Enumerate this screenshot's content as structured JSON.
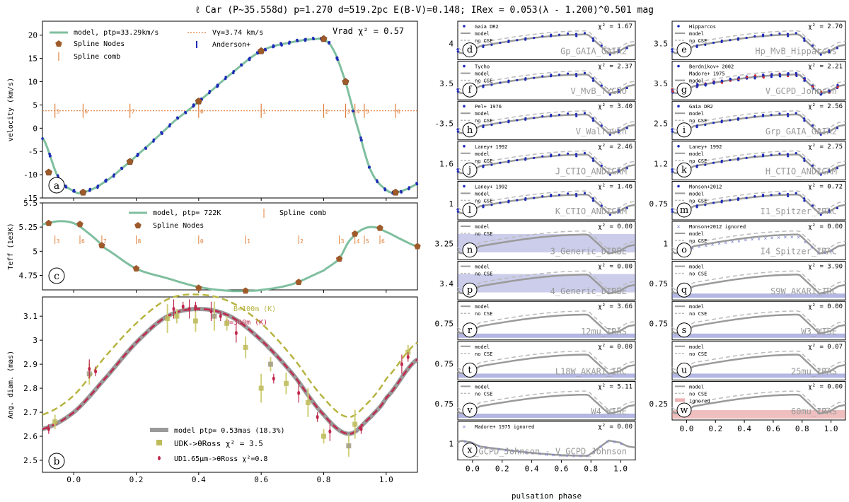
{
  "figure_title": "ℓ Car (P~35.558d) p=1.270 d=519.2pc E(B-V)=0.148; IRex = 0.053(λ - 1.200)^0.501 mag",
  "colors": {
    "model": "#7fbf9f",
    "node": "#9e5a2a",
    "comb": "#e07f3a",
    "data": "#1f2bb8",
    "dark": "#000000",
    "diamK": "#b7b441",
    "diamH": "#c0284c",
    "gray": "#9a9a9a",
    "cse": "#6a6fc4",
    "red": "#e08080"
  },
  "chart_data": [
    {
      "id": "a",
      "type": "line",
      "ylabel": "velocity (km/s)",
      "ylim": [
        -15,
        23
      ],
      "yticks": [
        -15,
        -10,
        -5,
        0,
        5,
        10,
        15,
        20
      ],
      "xlim": [
        -0.1,
        1.1
      ],
      "legend": {
        "model": "model, ptp=33.29km/s",
        "vgamma": "Vγ=3.74 km/s",
        "nodes": "Spline Nodes",
        "data": "Anderson+",
        "comb": "Spline comb"
      },
      "stat": "Vrad χ² = 0.57",
      "gamma": 3.74,
      "nodes": [
        [
          -0.08,
          -9.5
        ],
        [
          0.03,
          -13.8
        ],
        [
          0.18,
          -7.2
        ],
        [
          0.4,
          5.8
        ],
        [
          0.6,
          16.6
        ],
        [
          0.8,
          19.2
        ],
        [
          0.87,
          10.0
        ],
        [
          1.03,
          -13.8
        ]
      ],
      "comb": [
        [
          -0.06,
          "5"
        ],
        [
          0.03,
          "6"
        ],
        [
          0.18,
          "7"
        ],
        [
          0.4,
          "0"
        ],
        [
          0.6,
          "1"
        ],
        [
          0.8,
          "2"
        ],
        [
          0.87,
          "3"
        ],
        [
          0.9,
          "4"
        ],
        [
          0.93,
          "5"
        ],
        [
          1.03,
          "6"
        ]
      ],
      "series": [
        {
          "name": "model",
          "x": [
            -0.1,
            -0.05,
            0.0,
            0.03,
            0.1,
            0.18,
            0.25,
            0.32,
            0.4,
            0.5,
            0.6,
            0.7,
            0.78,
            0.8,
            0.83,
            0.87,
            0.9,
            0.95,
            1.0,
            1.03,
            1.07,
            1.1
          ],
          "y": [
            -2.0,
            -10.5,
            -13.5,
            -13.8,
            -11.5,
            -7.2,
            -3.0,
            1.4,
            5.8,
            11.5,
            16.6,
            18.5,
            19.2,
            19.0,
            17.0,
            10.0,
            2.0,
            -9.0,
            -13.2,
            -13.8,
            -13.0,
            -12.0
          ]
        }
      ]
    },
    {
      "id": "c",
      "type": "line",
      "ylabel": "Teff (1e3K)",
      "ylim": [
        4.6,
        5.5
      ],
      "yticks": [
        4.75,
        5.0,
        5.25,
        5.5
      ],
      "xlim": [
        -0.1,
        1.1
      ],
      "legend": {
        "model": "model, ptp= 722K",
        "nodes": "Spline Nodes",
        "comb": "Spline comb"
      },
      "nodes": [
        [
          -0.08,
          5.29
        ],
        [
          0.02,
          5.28
        ],
        [
          0.09,
          5.06
        ],
        [
          0.2,
          4.82
        ],
        [
          0.4,
          4.62
        ],
        [
          0.55,
          4.59
        ],
        [
          0.72,
          4.68
        ],
        [
          0.85,
          4.92
        ],
        [
          0.9,
          5.18
        ],
        [
          0.98,
          5.24
        ],
        [
          1.1,
          5.05
        ]
      ],
      "comb": [
        [
          -0.06,
          "3"
        ],
        [
          0.02,
          "6"
        ],
        [
          0.09,
          "7"
        ],
        [
          0.2,
          "8"
        ],
        [
          0.4,
          "0"
        ],
        [
          0.55,
          "1"
        ],
        [
          0.72,
          "2"
        ],
        [
          0.85,
          "3"
        ],
        [
          0.9,
          "4"
        ],
        [
          0.93,
          "5"
        ],
        [
          0.98,
          "6"
        ]
      ],
      "series": [
        {
          "name": "model",
          "x": [
            -0.1,
            -0.05,
            0.0,
            0.05,
            0.1,
            0.2,
            0.3,
            0.4,
            0.5,
            0.55,
            0.6,
            0.7,
            0.8,
            0.85,
            0.88,
            0.92,
            0.96,
            1.0,
            1.05,
            1.1
          ],
          "y": [
            5.28,
            5.31,
            5.29,
            5.18,
            5.03,
            4.82,
            4.72,
            4.63,
            4.59,
            4.59,
            4.6,
            4.66,
            4.8,
            4.92,
            5.1,
            5.22,
            5.25,
            5.2,
            5.12,
            5.05
          ]
        }
      ]
    },
    {
      "id": "b",
      "type": "line",
      "xlabel": "",
      "ylabel": "Ang. diam. (mas)",
      "ylim": [
        2.45,
        3.18
      ],
      "yticks": [
        2.5,
        2.6,
        2.7,
        2.8,
        2.9,
        3.0,
        3.1
      ],
      "xticks": [
        0.0,
        0.2,
        0.4,
        0.6,
        0.8,
        1.0
      ],
      "xlim": [
        -0.1,
        1.1
      ],
      "legend": {
        "model": "model ptp= 0.53mas (18.3%)",
        "udk": "UDK->θRoss χ² = 3.5",
        "udh": "UD1.65μm->θRoss χ²=0.8"
      },
      "annot": {
        "b100": "B=100m (K)",
        "b300": "B=300m (K)"
      },
      "model": {
        "x": [
          -0.1,
          0.0,
          0.1,
          0.2,
          0.3,
          0.4,
          0.5,
          0.6,
          0.7,
          0.8,
          0.88,
          0.95,
          1.0,
          1.1
        ],
        "y": [
          2.63,
          2.7,
          2.84,
          2.99,
          3.1,
          3.13,
          3.1,
          3.0,
          2.86,
          2.69,
          2.61,
          2.68,
          2.76,
          2.92
        ]
      },
      "b100": {
        "x": [
          -0.1,
          0.0,
          0.1,
          0.2,
          0.3,
          0.4,
          0.5,
          0.6,
          0.7,
          0.8,
          0.88,
          0.95,
          1.0,
          1.1
        ],
        "y": [
          2.69,
          2.77,
          2.93,
          3.07,
          3.17,
          3.19,
          3.16,
          3.07,
          2.93,
          2.76,
          2.68,
          2.75,
          2.84,
          2.99
        ]
      },
      "udk_points": [
        [
          -0.06,
          2.66
        ],
        [
          0.05,
          2.86
        ],
        [
          0.3,
          3.09
        ],
        [
          0.33,
          3.1
        ],
        [
          0.39,
          3.08
        ],
        [
          0.45,
          3.1
        ],
        [
          0.49,
          3.07
        ],
        [
          0.55,
          2.97
        ],
        [
          0.6,
          2.8
        ],
        [
          0.63,
          2.9
        ],
        [
          0.68,
          2.82
        ],
        [
          0.75,
          2.74
        ],
        [
          0.8,
          2.6
        ],
        [
          0.88,
          2.56
        ],
        [
          0.9,
          2.65
        ],
        [
          1.07,
          2.95
        ]
      ],
      "udh_points": [
        [
          -0.08,
          2.63
        ],
        [
          0.05,
          2.88
        ],
        [
          0.07,
          2.87
        ],
        [
          0.32,
          3.13
        ],
        [
          0.35,
          3.14
        ],
        [
          0.37,
          3.13
        ],
        [
          0.39,
          3.14
        ],
        [
          0.44,
          3.12
        ],
        [
          0.47,
          3.1
        ],
        [
          0.52,
          3.03
        ],
        [
          0.64,
          2.84
        ],
        [
          0.72,
          2.78
        ],
        [
          0.78,
          2.68
        ],
        [
          0.82,
          2.62
        ],
        [
          0.92,
          2.63
        ],
        [
          1.05,
          2.9
        ],
        [
          1.07,
          2.93
        ]
      ]
    }
  ],
  "small_panels": [
    {
      "id": "d",
      "col": 0,
      "row": 0,
      "band": "Gp_GAIA_GAIA2",
      "chi": "χ² = 1.67",
      "legend": [
        "Gaia DR2",
        "model",
        "no CSE"
      ],
      "ytick": "4",
      "cse": false,
      "dots": "blue"
    },
    {
      "id": "e",
      "col": 1,
      "row": 0,
      "band": "Hp_MvB_Hipparcos",
      "chi": "χ² = 2.70",
      "legend": [
        "Hipparcos",
        "model",
        "no CSE"
      ],
      "ytick": "3.5",
      "cse": false,
      "dots": "blue"
    },
    {
      "id": "f",
      "col": 0,
      "row": 1,
      "band": "V_MvB_TYCHO",
      "chi": "χ² = 2.37",
      "legend": [
        "Tycho",
        "model",
        "no CSE"
      ],
      "ytick": "3.5",
      "cse": false,
      "dots": "blue"
    },
    {
      "id": "g",
      "col": 1,
      "row": 1,
      "band": "V_GCPD_Johnson",
      "chi": "χ² = 2.21",
      "legend": [
        "Berdnikov+ 2002",
        "Madore+ 1975",
        "model"
      ],
      "ytick": "3.5",
      "cse": false,
      "dots": "dense"
    },
    {
      "id": "h",
      "col": 0,
      "row": 2,
      "band": "V_Walraven",
      "chi": "χ² = 3.40",
      "legend": [
        "Pel+ 1976",
        "model",
        "no CSE"
      ],
      "ytick": "-3.5",
      "cse": false,
      "dots": "blue"
    },
    {
      "id": "i",
      "col": 1,
      "row": 2,
      "band": "Grp_GAIA_GAIA2",
      "chi": "χ² = 2.56",
      "legend": [
        "Gaia DR2",
        "model",
        "no CSE"
      ],
      "ytick": "2.5",
      "cse": false,
      "dots": "blue"
    },
    {
      "id": "j",
      "col": 0,
      "row": 3,
      "band": "J_CTIO_ANDICAM",
      "chi": "χ² = 2.46",
      "legend": [
        "Laney+ 1992",
        "model",
        "no CSE"
      ],
      "ytick": "1.6",
      "cse": false,
      "dots": "blue"
    },
    {
      "id": "k",
      "col": 1,
      "row": 3,
      "band": "H_CTIO_ANDICAM",
      "chi": "χ² = 2.75",
      "legend": [
        "Laney+ 1992",
        "model",
        "no CSE"
      ],
      "ytick": "1.2",
      "cse": false,
      "dots": "blue"
    },
    {
      "id": "l",
      "col": 0,
      "row": 4,
      "band": "K_CTIO_ANDICAM",
      "chi": "χ² = 1.46",
      "legend": [
        "Laney+ 1992",
        "model",
        "no CSE"
      ],
      "ytick": "1",
      "cse": false,
      "dots": "blue"
    },
    {
      "id": "m",
      "col": 1,
      "row": 4,
      "band": "I1_Spitzer_IRAC",
      "chi": "χ² = 0.72",
      "legend": [
        "Monson+2012",
        "model",
        "no CSE"
      ],
      "ytick": "0.75",
      "cse": false,
      "dots": "blue"
    },
    {
      "id": "n",
      "col": 0,
      "row": 5,
      "band": "3_Generic_DIRBE",
      "chi": "χ² = 0.00",
      "legend": [
        "model",
        "no CSE"
      ],
      "ytick": "3.25",
      "cse": true,
      "dots": "none"
    },
    {
      "id": "o",
      "col": 1,
      "row": 5,
      "band": "I4_Spitzer_IRAC",
      "chi": "χ² = 0.00",
      "legend": [
        "Monson+2012 ignored",
        "model",
        "no CSE"
      ],
      "ytick": "1",
      "cse": false,
      "dots": "cross"
    },
    {
      "id": "p",
      "col": 0,
      "row": 6,
      "band": "4_Generic_DIRBE",
      "chi": "χ² = 0.00",
      "legend": [
        "model",
        "no CSE"
      ],
      "ytick": "3.4",
      "cse": true,
      "dots": "none"
    },
    {
      "id": "q",
      "col": 1,
      "row": 6,
      "band": "S9W_AKARI_IRC",
      "chi": "χ² = 3.90",
      "legend": [
        "model",
        "no CSE"
      ],
      "ytick": "0.75",
      "cse": false,
      "dots": "none",
      "thinband": true
    },
    {
      "id": "r",
      "col": 0,
      "row": 7,
      "band": "12mu_IRAS",
      "chi": "χ² = 3.66",
      "legend": [
        "model",
        "no CSE"
      ],
      "ytick": "0.75",
      "cse": false,
      "dots": "none",
      "thinband": true
    },
    {
      "id": "s",
      "col": 1,
      "row": 7,
      "band": "W3_WISE",
      "chi": "χ² = 0.00",
      "legend": [
        "model",
        "no CSE"
      ],
      "ytick": "0.75",
      "cse": false,
      "dots": "none",
      "thinband": true
    },
    {
      "id": "t",
      "col": 0,
      "row": 8,
      "band": "L18W_AKARI_IRC",
      "chi": "χ² = 0.00",
      "legend": [
        "model",
        "no CSE"
      ],
      "ytick": "0.75",
      "cse": false,
      "dots": "none",
      "thinband": true
    },
    {
      "id": "u",
      "col": 1,
      "row": 8,
      "band": "25mu_IRAS",
      "chi": "χ² = 0.07",
      "legend": [
        "model",
        "no CSE"
      ],
      "ytick": "",
      "cse": false,
      "dots": "none",
      "thinband": true
    },
    {
      "id": "v",
      "col": 0,
      "row": 9,
      "band": "W4_WISE",
      "chi": "χ² = 5.11",
      "legend": [
        "model",
        "no CSE"
      ],
      "ytick": "0.75",
      "cse": false,
      "dots": "none",
      "thinband": true
    },
    {
      "id": "w",
      "col": 1,
      "row": 9,
      "band": "60mu_IRAS",
      "chi": "χ² = 0.00",
      "legend": [
        "model",
        "no CSE",
        "ignored"
      ],
      "ytick": "0.25",
      "cse": false,
      "dots": "none",
      "redband": true
    },
    {
      "id": "x",
      "col": 0,
      "row": 10,
      "band": "B_GCPD_Johnson - V_GCPD_Johnson",
      "chi": "χ² = 0.00",
      "legend": [
        "Madore+ 1975 ignored"
      ],
      "ytick": "1",
      "cse": false,
      "dots": "colorx"
    }
  ],
  "small_xticks": [
    "0.0",
    "0.2",
    "0.4",
    "0.6",
    "0.8",
    "1.0"
  ],
  "small_xlabel": "pulsation phase"
}
